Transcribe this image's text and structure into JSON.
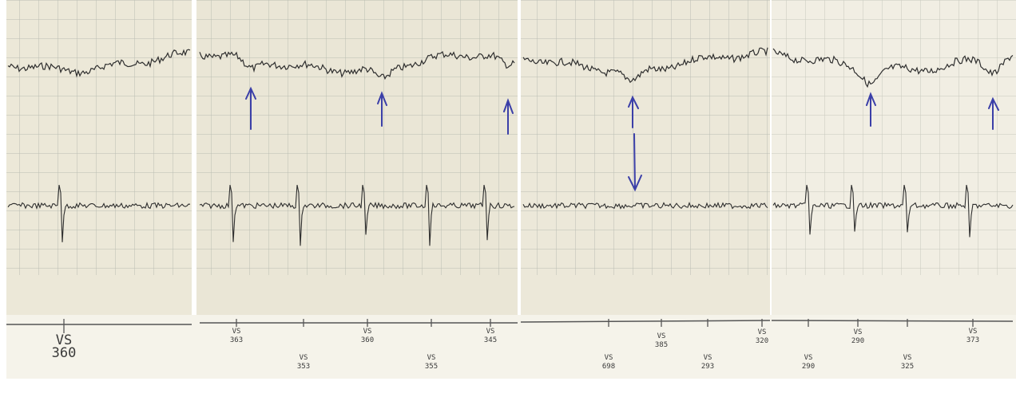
{
  "strip": {
    "paper_color": "#ece8d8",
    "grid_color": "#b5b8ae",
    "trace_color": "#2e2e2e",
    "annotation_color": "#3b3fa8",
    "panels": 4
  },
  "scale_labels": [
    {
      "prefix": "VS",
      "value": "360",
      "large": true
    },
    {
      "prefix": "VS",
      "value": "363"
    },
    {
      "prefix": "VS",
      "value": "353"
    },
    {
      "prefix": "VS",
      "value": "360"
    },
    {
      "prefix": "VS",
      "value": "355"
    },
    {
      "prefix": "VS",
      "value": "345"
    },
    {
      "prefix": "VS",
      "value": "698"
    },
    {
      "prefix": "VS",
      "value": "385"
    },
    {
      "prefix": "VS",
      "value": "293"
    },
    {
      "prefix": "VS",
      "value": "320"
    },
    {
      "prefix": "VS",
      "value": "290"
    },
    {
      "prefix": "VS",
      "value": "290"
    },
    {
      "prefix": "VS",
      "value": "325"
    },
    {
      "prefix": "VS",
      "value": "373"
    }
  ],
  "annotations": {
    "up_arrows": 6,
    "down_arrows": 1,
    "icon": "hand-drawn-arrow-icon"
  }
}
